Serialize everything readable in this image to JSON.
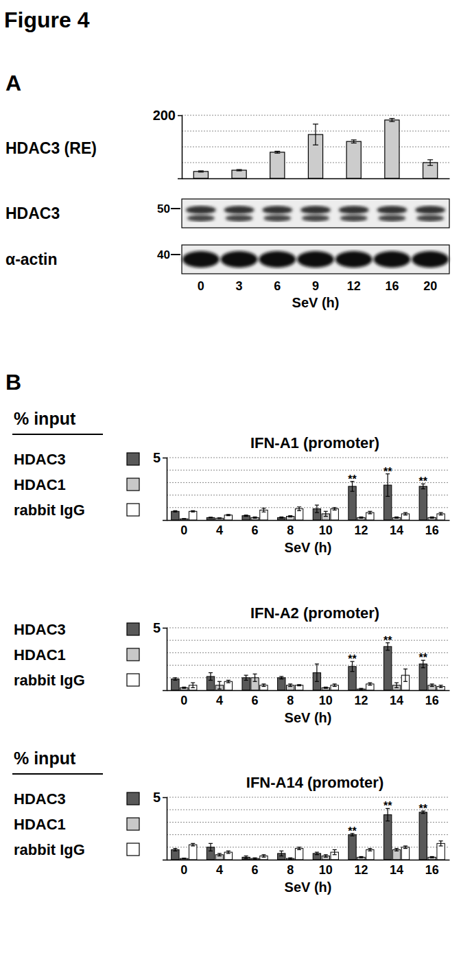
{
  "figure": {
    "title": "Figure 4",
    "panels": [
      "A",
      "B"
    ]
  },
  "blots": [
    {
      "label": "HDAC3",
      "size_marker": 50
    },
    {
      "label": "α-actin",
      "size_marker": 40
    }
  ],
  "chart_data": [
    {
      "type": "bar",
      "y_label": "HDAC3 (RE)",
      "x_label": "SeV (h)",
      "categories": [
        "0",
        "3",
        "6",
        "9",
        "12",
        "16",
        "20"
      ],
      "values": [
        22,
        26,
        83,
        139,
        117,
        185,
        50
      ],
      "errors": [
        2,
        2,
        3,
        33,
        5,
        5,
        9
      ],
      "color": "#cccccc",
      "ylim": [
        0,
        200
      ],
      "yticks": [
        200
      ],
      "minor_yticks": [
        50,
        100,
        150
      ],
      "grid": true
    },
    {
      "type": "bar",
      "title": "IFN-A1 (promoter)",
      "y_label": "% input",
      "x_label": "SeV (h)",
      "legend": "left",
      "grid": true,
      "categories": [
        "0",
        "4",
        "6",
        "8",
        "10",
        "12",
        "14",
        "16"
      ],
      "ylim": [
        0,
        5
      ],
      "yticks": [
        5
      ],
      "minor_yticks": [
        1,
        2,
        3,
        4
      ],
      "series": [
        {
          "name": "HDAC3",
          "color": "#595959",
          "values": [
            0.7,
            0.2,
            0.35,
            0.2,
            0.9,
            2.7,
            2.8,
            2.7
          ],
          "errors": [
            0.05,
            0.03,
            0.05,
            0.05,
            0.3,
            0.4,
            0.9,
            0.2
          ],
          "significance": [
            null,
            null,
            null,
            null,
            null,
            "**",
            "**",
            "**"
          ]
        },
        {
          "name": "HDAC1",
          "color": "#c8c8c8",
          "values": [
            0.1,
            0.15,
            0.2,
            0.3,
            0.5,
            0.2,
            0.2,
            0.2
          ],
          "errors": [
            0.02,
            0.03,
            0.05,
            0.05,
            0.2,
            0.05,
            0.05,
            0.05
          ]
        },
        {
          "name": "rabbit IgG",
          "color": "#ffffff",
          "values": [
            0.7,
            0.4,
            0.8,
            0.9,
            0.9,
            0.6,
            0.5,
            0.5
          ],
          "errors": [
            0.05,
            0.05,
            0.15,
            0.15,
            0.1,
            0.1,
            0.1,
            0.1
          ]
        }
      ]
    },
    {
      "type": "bar",
      "title": "IFN-A2 (promoter)",
      "x_label": "SeV (h)",
      "legend": "left",
      "grid": true,
      "categories": [
        "0",
        "4",
        "6",
        "8",
        "10",
        "12",
        "14",
        "16"
      ],
      "ylim": [
        0,
        5
      ],
      "yticks": [
        5
      ],
      "minor_yticks": [
        1,
        2,
        3,
        4
      ],
      "series": [
        {
          "name": "HDAC3",
          "color": "#595959",
          "values": [
            0.9,
            1.1,
            1.0,
            1.0,
            1.4,
            1.9,
            3.5,
            2.1
          ],
          "errors": [
            0.1,
            0.3,
            0.2,
            0.1,
            0.7,
            0.4,
            0.3,
            0.3
          ],
          "significance": [
            null,
            null,
            null,
            null,
            null,
            "**",
            "**",
            "**"
          ]
        },
        {
          "name": "HDAC1",
          "color": "#c8c8c8",
          "values": [
            0.2,
            0.4,
            1.0,
            0.4,
            0.2,
            0.1,
            0.4,
            0.4
          ],
          "errors": [
            0.05,
            0.3,
            0.3,
            0.1,
            0.05,
            0.05,
            0.2,
            0.1
          ]
        },
        {
          "name": "rabbit IgG",
          "color": "#ffffff",
          "values": [
            0.4,
            0.7,
            0.4,
            0.4,
            0.4,
            0.5,
            1.2,
            0.3
          ],
          "errors": [
            0.2,
            0.1,
            0.1,
            0.05,
            0.1,
            0.1,
            0.5,
            0.1
          ]
        }
      ]
    },
    {
      "type": "bar",
      "title": "IFN-A14 (promoter)",
      "y_label": "% input",
      "x_label": "SeV (h)",
      "legend": "left",
      "grid": true,
      "categories": [
        "0",
        "4",
        "6",
        "8",
        "10",
        "12",
        "14",
        "16"
      ],
      "ylim": [
        0,
        5
      ],
      "yticks": [
        5
      ],
      "minor_yticks": [
        1,
        2,
        3,
        4
      ],
      "series": [
        {
          "name": "HDAC3",
          "color": "#595959",
          "values": [
            0.8,
            1.0,
            0.2,
            0.5,
            0.5,
            2.0,
            3.6,
            3.8
          ],
          "errors": [
            0.1,
            0.3,
            0.1,
            0.2,
            0.1,
            0.1,
            0.5,
            0.1
          ],
          "significance": [
            null,
            null,
            null,
            null,
            null,
            "**",
            "**",
            "**"
          ]
        },
        {
          "name": "HDAC1",
          "color": "#c8c8c8",
          "values": [
            0.1,
            0.4,
            0.1,
            0.1,
            0.3,
            0.2,
            0.8,
            0.2
          ],
          "errors": [
            0.02,
            0.1,
            0.05,
            0.05,
            0.1,
            0.05,
            0.1,
            0.05
          ]
        },
        {
          "name": "rabbit IgG",
          "color": "#ffffff",
          "values": [
            1.2,
            0.6,
            0.3,
            0.9,
            0.6,
            0.8,
            1.0,
            1.3
          ],
          "errors": [
            0.1,
            0.1,
            0.1,
            0.1,
            0.2,
            0.1,
            0.1,
            0.2
          ]
        }
      ]
    }
  ]
}
